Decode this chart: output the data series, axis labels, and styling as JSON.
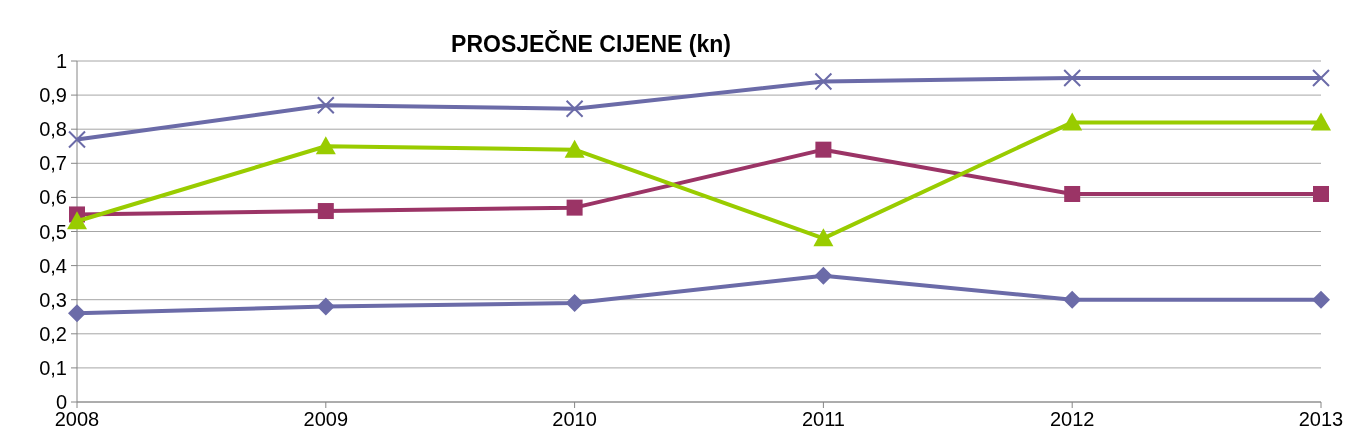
{
  "chart_data": {
    "type": "line",
    "title": "PROSJEČNE CIJENE (kn)",
    "x": [
      2008,
      2009,
      2010,
      2011,
      2012,
      2013
    ],
    "xlim": [
      2008,
      2013
    ],
    "xticks": [
      2008,
      2009,
      2010,
      2011,
      2012,
      2013
    ],
    "ylim": [
      0,
      1
    ],
    "yticks": [
      0,
      {
        "value": 0.1,
        "label": "0,1"
      },
      {
        "value": 0.2,
        "label": "0,2"
      },
      {
        "value": 0.3,
        "label": "0,3"
      },
      {
        "value": 0.4,
        "label": "0,4"
      },
      {
        "value": 0.5,
        "label": "0,5"
      },
      {
        "value": 0.6,
        "label": "0,6"
      },
      {
        "value": 0.7,
        "label": "0,7"
      },
      {
        "value": 0.8,
        "label": "0,8"
      },
      {
        "value": 0.9,
        "label": "0,9"
      },
      1
    ],
    "grid": "y",
    "series": [
      {
        "color": "#6b6ba8",
        "marker": "diamond",
        "values": [
          0.26,
          0.28,
          0.29,
          0.37,
          0.3,
          0.3
        ]
      },
      {
        "color": "#9b3466",
        "marker": "square",
        "values": [
          0.55,
          0.56,
          0.57,
          0.74,
          0.61,
          0.61
        ]
      },
      {
        "color": "#99cc00",
        "marker": "triangle",
        "values": [
          0.53,
          0.75,
          0.74,
          0.48,
          0.82,
          0.82
        ]
      },
      {
        "color": "#6b6ba8",
        "marker": "cross",
        "values": [
          0.77,
          0.87,
          0.86,
          0.94,
          0.95,
          0.95
        ]
      }
    ]
  }
}
